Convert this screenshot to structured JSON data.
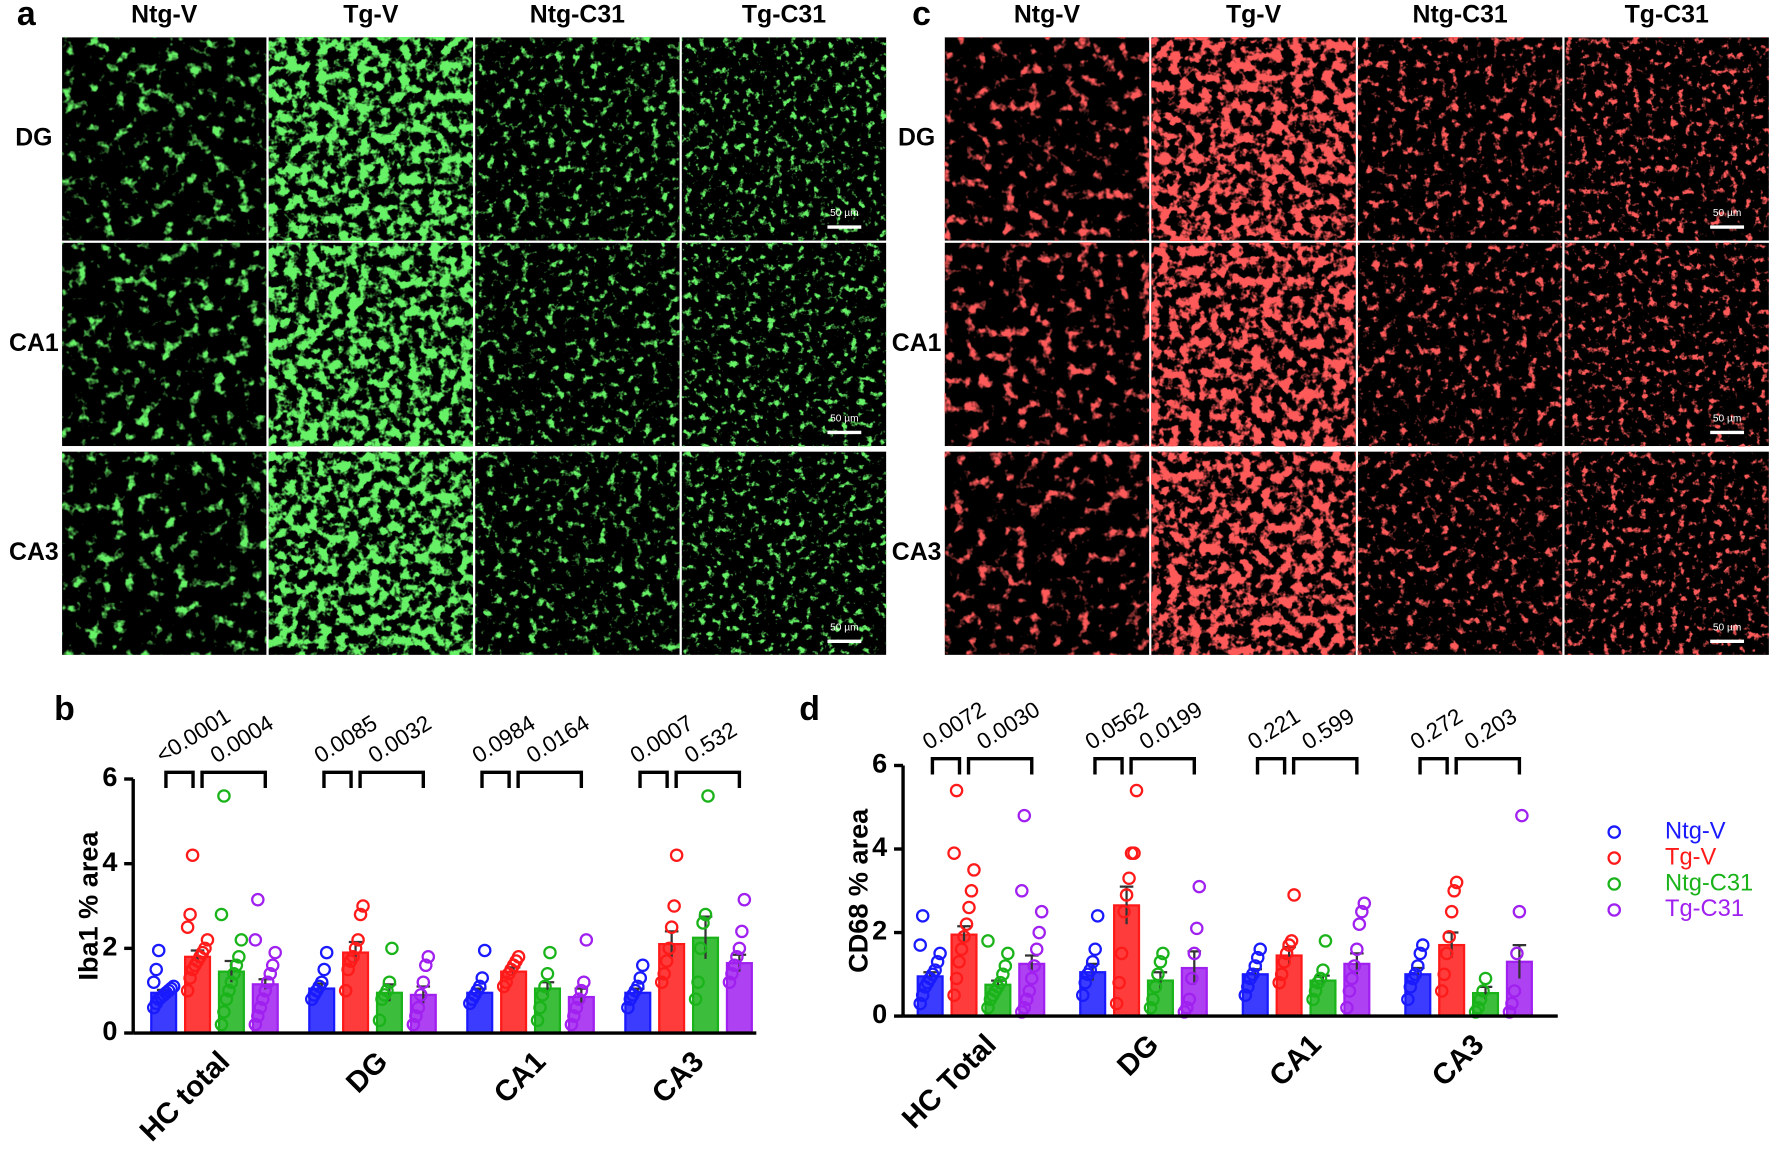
{
  "figure": {
    "panel_labels": [
      "a",
      "b",
      "c",
      "d"
    ]
  },
  "micrographs": [
    {
      "columns": [
        "Ntg-V",
        "Tg-V",
        "Ntg-C31",
        "Tg-C31"
      ],
      "rows": [
        "DG",
        "CA1",
        "CA3"
      ],
      "scale_bar": "50 µm",
      "color": "#22e022"
    },
    {
      "columns": [
        "Ntg-V",
        "Tg-V",
        "Ntg-C31",
        "Tg-C31"
      ],
      "rows": [
        "DG",
        "CA1",
        "CA3"
      ],
      "scale_bar": "50 µm",
      "color": "#ff1a1a"
    }
  ],
  "chart_data": [
    {
      "type": "bar",
      "ylabel": "Iba1 % area",
      "categories": [
        "HC total",
        "DG",
        "CA1",
        "CA3"
      ],
      "ylim": [
        0,
        6
      ],
      "yticks": [
        0,
        2,
        4,
        6
      ],
      "legend": false,
      "comparisons": [
        [
          "<0.0001",
          "0.0004"
        ],
        [
          "0.0085",
          "0.0032"
        ],
        [
          "0.0984",
          "0.0164"
        ],
        [
          "0.0007",
          "0.532"
        ]
      ],
      "series": [
        {
          "color": "#1a1aff",
          "values": [
            0.95,
            1.05,
            0.95,
            0.95
          ],
          "errors": [
            0.07,
            0.12,
            0.1,
            0.1
          ],
          "points": [
            [
              0.6,
              0.7,
              0.8,
              0.85,
              0.9,
              0.95,
              1.0,
              1.05,
              1.1,
              1.2,
              1.5,
              1.95
            ],
            [
              0.8,
              0.9,
              1.0,
              1.1,
              1.2,
              1.5,
              1.9
            ],
            [
              0.7,
              0.8,
              0.9,
              1.0,
              1.1,
              1.3,
              1.95
            ],
            [
              0.6,
              0.8,
              0.9,
              1.0,
              1.1,
              1.3,
              1.6
            ]
          ]
        },
        {
          "color": "#ff1a1a",
          "values": [
            1.8,
            1.9,
            1.45,
            2.1
          ],
          "errors": [
            0.15,
            0.25,
            0.1,
            0.3
          ],
          "points": [
            [
              1.0,
              1.3,
              1.5,
              1.6,
              1.7,
              1.8,
              1.9,
              2.0,
              2.2,
              2.5,
              2.8,
              4.2
            ],
            [
              1.0,
              1.5,
              1.7,
              1.8,
              2.0,
              2.2,
              2.8,
              3.0
            ],
            [
              1.1,
              1.2,
              1.4,
              1.5,
              1.6,
              1.7,
              1.8
            ],
            [
              1.2,
              1.4,
              1.7,
              2.0,
              2.5,
              3.0,
              4.2
            ]
          ]
        },
        {
          "color": "#1ab31a",
          "values": [
            1.45,
            0.95,
            1.05,
            2.25
          ],
          "errors": [
            0.25,
            0.2,
            0.15,
            0.5
          ],
          "points": [
            [
              0.2,
              0.5,
              0.8,
              1.0,
              1.2,
              1.4,
              1.6,
              1.8,
              2.2,
              2.8,
              5.6
            ],
            [
              0.3,
              0.8,
              0.9,
              1.0,
              1.2,
              2.0
            ],
            [
              0.3,
              0.6,
              0.9,
              1.1,
              1.4,
              1.9
            ],
            [
              0.8,
              1.2,
              2.0,
              2.6,
              2.8,
              5.6
            ]
          ]
        },
        {
          "color": "#a020f0",
          "values": [
            1.15,
            0.9,
            0.85,
            1.65
          ],
          "errors": [
            0.12,
            0.2,
            0.2,
            0.2
          ],
          "points": [
            [
              0.2,
              0.4,
              0.6,
              0.8,
              1.0,
              1.2,
              1.4,
              1.6,
              1.9,
              2.2,
              3.15
            ],
            [
              0.2,
              0.4,
              0.6,
              0.9,
              1.2,
              1.6,
              1.8
            ],
            [
              0.2,
              0.4,
              0.6,
              0.8,
              1.0,
              1.2,
              2.2
            ],
            [
              1.2,
              1.4,
              1.6,
              1.8,
              2.0,
              2.4,
              3.15
            ]
          ]
        }
      ]
    },
    {
      "type": "bar",
      "ylabel": "CD68 % area",
      "categories": [
        "HC Total",
        "DG",
        "CA1",
        "CA3"
      ],
      "ylim": [
        0,
        6
      ],
      "yticks": [
        0,
        2,
        4,
        6
      ],
      "legend": "right",
      "comparisons": [
        [
          "0.0072",
          "0.0030"
        ],
        [
          "0.0562",
          "0.0199"
        ],
        [
          "0.221",
          "0.599"
        ],
        [
          "0.272",
          "0.203"
        ]
      ],
      "series": [
        {
          "name": "Ntg-V",
          "color": "#1a1aff",
          "values": [
            0.95,
            1.05,
            1.0,
            1.0
          ],
          "errors": [
            0.1,
            0.2,
            0.12,
            0.15
          ],
          "points": [
            [
              0.3,
              0.5,
              0.7,
              0.8,
              0.9,
              1.0,
              1.1,
              1.3,
              1.5,
              1.7,
              2.4
            ],
            [
              0.5,
              0.8,
              1.0,
              1.1,
              1.3,
              1.6,
              2.4
            ],
            [
              0.5,
              0.7,
              0.9,
              1.0,
              1.2,
              1.4,
              1.6
            ],
            [
              0.4,
              0.7,
              0.9,
              1.0,
              1.2,
              1.5,
              1.7
            ]
          ]
        },
        {
          "name": "Tg-V",
          "color": "#ff1a1a",
          "values": [
            1.95,
            2.65,
            1.45,
            1.7
          ],
          "errors": [
            0.2,
            0.45,
            0.2,
            0.3
          ],
          "points": [
            [
              0.5,
              0.9,
              1.3,
              1.6,
              1.9,
              2.2,
              2.6,
              3.0,
              3.5,
              3.9,
              5.4
            ],
            [
              0.3,
              0.8,
              1.5,
              2.5,
              2.9,
              3.3,
              3.9,
              3.9,
              5.4
            ],
            [
              0.8,
              1.0,
              1.3,
              1.5,
              1.7,
              1.8,
              2.9
            ],
            [
              0.6,
              1.0,
              1.5,
              1.9,
              2.5,
              3.0,
              3.2
            ]
          ]
        },
        {
          "name": "Ntg-C31",
          "color": "#1ab31a",
          "values": [
            0.75,
            0.85,
            0.85,
            0.55
          ],
          "errors": [
            0.1,
            0.2,
            0.12,
            0.15
          ],
          "points": [
            [
              0.2,
              0.4,
              0.5,
              0.6,
              0.7,
              0.8,
              1.0,
              1.2,
              1.5,
              1.8
            ],
            [
              0.2,
              0.4,
              0.7,
              1.0,
              1.3,
              1.5
            ],
            [
              0.4,
              0.6,
              0.8,
              0.9,
              1.1,
              1.8
            ],
            [
              0.1,
              0.2,
              0.4,
              0.6,
              0.9
            ]
          ]
        },
        {
          "name": "Tg-C31",
          "color": "#a020f0",
          "values": [
            1.25,
            1.15,
            1.25,
            1.3
          ],
          "errors": [
            0.2,
            0.4,
            0.25,
            0.4
          ],
          "points": [
            [
              0.1,
              0.2,
              0.4,
              0.6,
              0.9,
              1.2,
              1.6,
              2.0,
              2.5,
              3.0,
              4.8
            ],
            [
              0.1,
              0.2,
              0.4,
              0.9,
              1.5,
              2.1,
              3.1
            ],
            [
              0.2,
              0.6,
              0.9,
              1.2,
              1.6,
              2.2,
              2.5,
              2.7
            ],
            [
              0.1,
              0.3,
              0.6,
              1.5,
              2.5,
              4.8
            ]
          ]
        }
      ]
    }
  ]
}
